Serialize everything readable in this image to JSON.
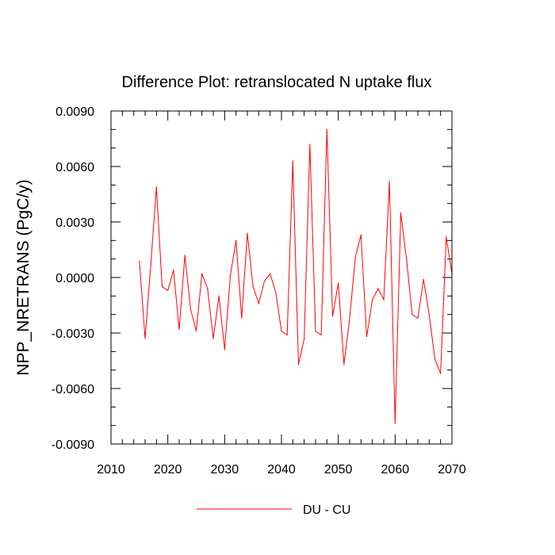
{
  "chart_data": {
    "type": "line",
    "title": "Difference Plot: retranslocated N uptake flux",
    "xlabel": "",
    "ylabel": "NPP_NRETRANS  (PgC/y)",
    "xlim": [
      2010,
      2070
    ],
    "ylim": [
      -0.009,
      0.009
    ],
    "x_ticks": [
      2010,
      2020,
      2030,
      2040,
      2050,
      2060,
      2070
    ],
    "x_tick_labels": [
      "2010",
      "2020",
      "2030",
      "2040",
      "2050",
      "2060",
      "2070"
    ],
    "y_ticks": [
      -0.009,
      -0.006,
      -0.003,
      0.0,
      0.003,
      0.006,
      0.009
    ],
    "y_tick_labels": [
      "-0.0090",
      "-0.0060",
      "-0.0030",
      "0.0000",
      "0.0030",
      "0.0060",
      "0.0090"
    ],
    "grid": false,
    "legend": {
      "placement": "bottom-center"
    },
    "series": [
      {
        "name": "DU - CU",
        "color": "#ff0000",
        "x": [
          2015,
          2016,
          2017,
          2018,
          2019,
          2020,
          2021,
          2022,
          2023,
          2024,
          2025,
          2026,
          2027,
          2028,
          2029,
          2030,
          2031,
          2032,
          2033,
          2034,
          2035,
          2036,
          2037,
          2038,
          2039,
          2040,
          2041,
          2042,
          2043,
          2044,
          2045,
          2046,
          2047,
          2048,
          2049,
          2050,
          2051,
          2052,
          2053,
          2054,
          2055,
          2056,
          2057,
          2058,
          2059,
          2060,
          2061,
          2062,
          2063,
          2064,
          2065,
          2066,
          2067,
          2068,
          2069,
          2070
        ],
        "values": [
          0.0009,
          -0.0033,
          0.0007,
          0.0049,
          -0.0005,
          -0.0007,
          0.0004,
          -0.0028,
          0.0012,
          -0.0017,
          -0.0029,
          0.0002,
          -0.0006,
          -0.0033,
          -0.001,
          -0.0039,
          0.0001,
          0.002,
          -0.0022,
          0.0024,
          -0.0005,
          -0.0014,
          -0.0002,
          0.0002,
          -0.0008,
          -0.0029,
          -0.0031,
          0.0063,
          -0.0047,
          -0.0033,
          0.0072,
          -0.0029,
          -0.0031,
          0.008,
          -0.0021,
          -0.0003,
          -0.0047,
          -0.0022,
          0.0011,
          0.0023,
          -0.0032,
          -0.0012,
          -0.0006,
          -0.0012,
          0.0052,
          -0.0079,
          0.0035,
          0.001,
          -0.002,
          -0.0022,
          -0.0001,
          -0.002,
          -0.0044,
          -0.0052,
          0.0022,
          0.0002
        ]
      }
    ]
  }
}
